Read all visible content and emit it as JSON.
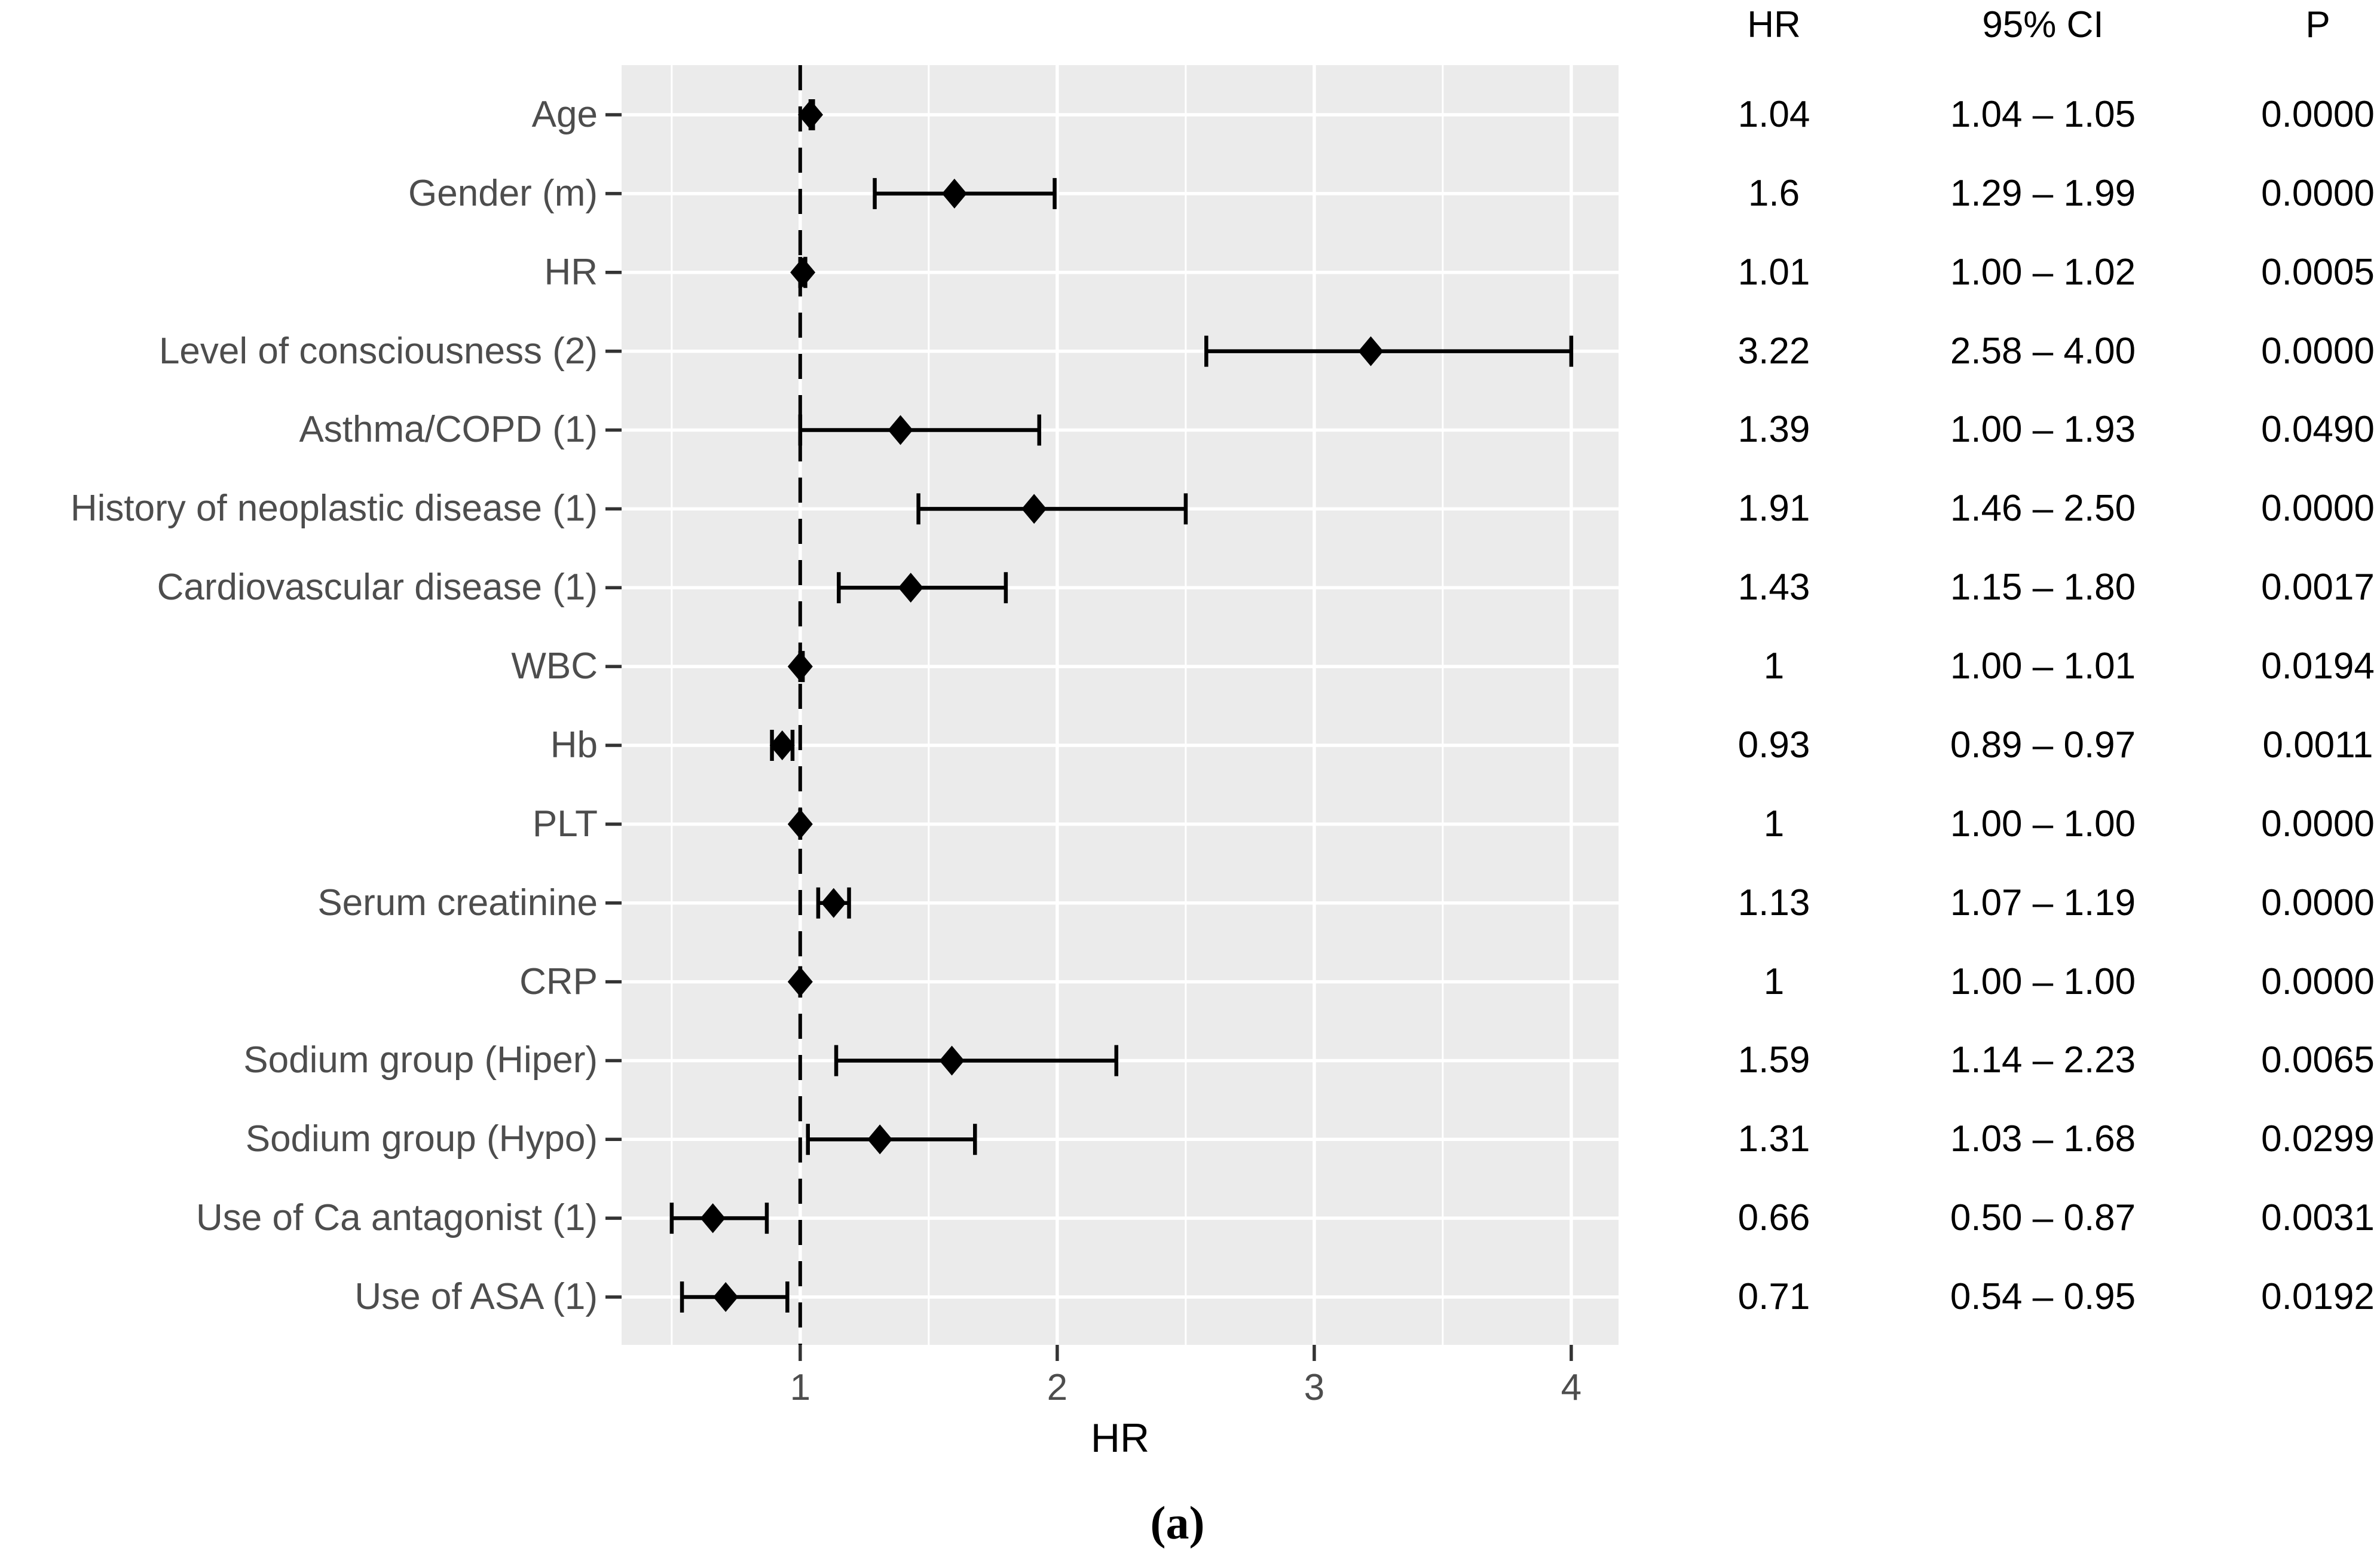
{
  "chart_data": {
    "type": "scatter",
    "subtype": "forest-plot",
    "title": "",
    "xlabel": "HR",
    "ylabel": "",
    "caption": "(a)",
    "xlim": [
      0.305,
      4.184
    ],
    "x_ticks": [
      1,
      2,
      3,
      4
    ],
    "x_tick_labels": [
      "1",
      "2",
      "3",
      "4"
    ],
    "x_minor_gridlines": [
      0.5,
      1.5,
      2.5,
      3.5
    ],
    "reference_line_x": 1,
    "grid": "white major/minor vertical, white major horizontal on gray panel",
    "legend_position": "none",
    "marker": "filled-diamond",
    "table_headers": {
      "hr": "HR",
      "ci": "95% CI",
      "p": "P"
    },
    "rows": [
      {
        "label": "Age",
        "hr": 1.04,
        "ci_low": 1.04,
        "ci_high": 1.05,
        "hr_text": "1.04",
        "ci_text": "1.04 – 1.05",
        "p_text": "0.0000"
      },
      {
        "label": "Gender (m)",
        "hr": 1.6,
        "ci_low": 1.29,
        "ci_high": 1.99,
        "hr_text": "1.6",
        "ci_text": "1.29 – 1.99",
        "p_text": "0.0000"
      },
      {
        "label": "HR",
        "hr": 1.01,
        "ci_low": 1.0,
        "ci_high": 1.02,
        "hr_text": "1.01",
        "ci_text": "1.00 – 1.02",
        "p_text": "0.0005"
      },
      {
        "label": "Level of consciousness (2)",
        "hr": 3.22,
        "ci_low": 2.58,
        "ci_high": 4.0,
        "hr_text": "3.22",
        "ci_text": "2.58 – 4.00",
        "p_text": "0.0000"
      },
      {
        "label": "Asthma/COPD (1)",
        "hr": 1.39,
        "ci_low": 1.0,
        "ci_high": 1.93,
        "hr_text": "1.39",
        "ci_text": "1.00 – 1.93",
        "p_text": "0.0490"
      },
      {
        "label": "History of neoplastic disease (1)",
        "hr": 1.91,
        "ci_low": 1.46,
        "ci_high": 2.5,
        "hr_text": "1.91",
        "ci_text": "1.46 – 2.50",
        "p_text": "0.0000"
      },
      {
        "label": "Cardiovascular disease (1)",
        "hr": 1.43,
        "ci_low": 1.15,
        "ci_high": 1.8,
        "hr_text": "1.43",
        "ci_text": "1.15 – 1.80",
        "p_text": "0.0017"
      },
      {
        "label": "WBC",
        "hr": 1.0,
        "ci_low": 1.0,
        "ci_high": 1.01,
        "hr_text": "1",
        "ci_text": "1.00 – 1.01",
        "p_text": "0.0194"
      },
      {
        "label": "Hb",
        "hr": 0.93,
        "ci_low": 0.89,
        "ci_high": 0.97,
        "hr_text": "0.93",
        "ci_text": "0.89 – 0.97",
        "p_text": "0.0011"
      },
      {
        "label": "PLT",
        "hr": 1.0,
        "ci_low": 1.0,
        "ci_high": 1.0,
        "hr_text": "1",
        "ci_text": "1.00 – 1.00",
        "p_text": "0.0000"
      },
      {
        "label": "Serum creatinine",
        "hr": 1.13,
        "ci_low": 1.07,
        "ci_high": 1.19,
        "hr_text": "1.13",
        "ci_text": "1.07 – 1.19",
        "p_text": "0.0000"
      },
      {
        "label": "CRP",
        "hr": 1.0,
        "ci_low": 1.0,
        "ci_high": 1.0,
        "hr_text": "1",
        "ci_text": "1.00 – 1.00",
        "p_text": "0.0000"
      },
      {
        "label": "Sodium group (Hiper)",
        "hr": 1.59,
        "ci_low": 1.14,
        "ci_high": 2.23,
        "hr_text": "1.59",
        "ci_text": "1.14 – 2.23",
        "p_text": "0.0065"
      },
      {
        "label": "Sodium group (Hypo)",
        "hr": 1.31,
        "ci_low": 1.03,
        "ci_high": 1.68,
        "hr_text": "1.31",
        "ci_text": "1.03 – 1.68",
        "p_text": "0.0299"
      },
      {
        "label": "Use of Ca antagonist (1)",
        "hr": 0.66,
        "ci_low": 0.5,
        "ci_high": 0.87,
        "hr_text": "0.66",
        "ci_text": "0.50 – 0.87",
        "p_text": "0.0031"
      },
      {
        "label": "Use of ASA (1)",
        "hr": 0.71,
        "ci_low": 0.54,
        "ci_high": 0.95,
        "hr_text": "0.71",
        "ci_text": "0.54 – 0.95",
        "p_text": "0.0192"
      }
    ],
    "colors": {
      "panel_bg": "#ebebeb",
      "gridline": "#ffffff",
      "axis_text": "#4d4d4d",
      "tick_mark": "#333333",
      "data": "#000000"
    }
  }
}
